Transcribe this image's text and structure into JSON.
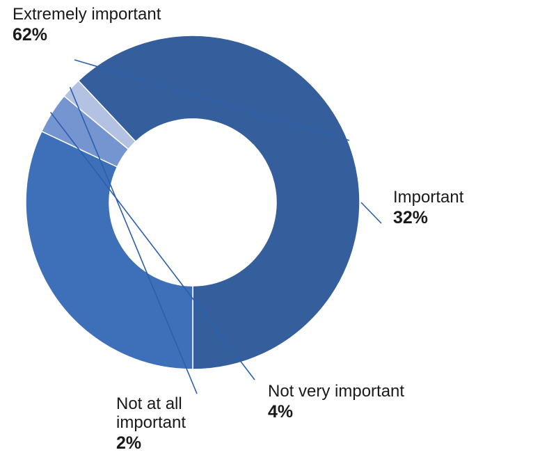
{
  "chart_data": {
    "type": "pie",
    "donut": true,
    "categories": [
      "Extremely important",
      "Important",
      "Not very important",
      "Not at all important"
    ],
    "values": [
      62,
      32,
      4,
      2
    ],
    "value_labels": [
      "62%",
      "32%",
      "4%",
      "2%"
    ],
    "colors": [
      "#345f9c",
      "#3e70b9",
      "#7595d0",
      "#b3c2e3"
    ],
    "title": "",
    "legend": "none"
  },
  "labels": [
    {
      "name": "Extremely important",
      "value": "62%"
    },
    {
      "name": "Important",
      "value": "32%"
    },
    {
      "name": "Not very important",
      "value": "4%"
    },
    {
      "name": "Not at all\nimportant",
      "value": "2%"
    }
  ],
  "leader_color": "#2b5fae"
}
